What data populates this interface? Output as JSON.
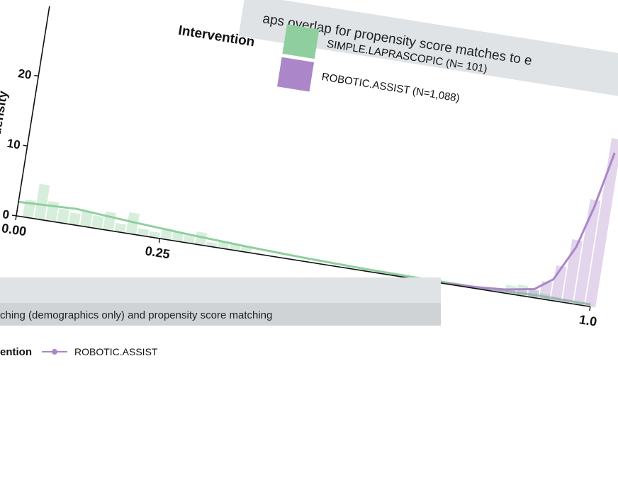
{
  "chart_data": [
    {
      "type": "histogram",
      "title": "aps overlap for propensity score matches to e",
      "xlabel": "",
      "ylabel": "density",
      "legend_title": "Intervention",
      "legend_placement": "top",
      "x_ticks": [
        "0.00",
        "0.25",
        "1.0"
      ],
      "y_ticks": [
        "0",
        "10",
        "20"
      ],
      "xlim": [
        0,
        1
      ],
      "ylim": [
        0,
        28
      ],
      "series": [
        {
          "name": "SIMPLE.LAPRASCOPIC (N=  101)",
          "color": "#8fcf9f",
          "bins_x": [
            0.02,
            0.04,
            0.06,
            0.08,
            0.1,
            0.12,
            0.14,
            0.16,
            0.18,
            0.2,
            0.22,
            0.24,
            0.26,
            0.28,
            0.3,
            0.32,
            0.34,
            0.36,
            0.38,
            0.4,
            0.86,
            0.88,
            0.9,
            0.92,
            0.94
          ],
          "bins_y": [
            2.5,
            5.0,
            2.8,
            2.0,
            1.7,
            2.3,
            1.8,
            2.6,
            1.2,
            3.0,
            1.0,
            0.8,
            1.6,
            1.2,
            1.0,
            1.8,
            0.6,
            1.0,
            0.8,
            0.9,
            1.2,
            1.5,
            1.0,
            0.8,
            0.6
          ],
          "density_x": [
            0.0,
            0.1,
            0.2,
            0.3,
            0.4,
            0.5,
            0.6,
            0.7,
            0.8,
            0.9,
            1.0
          ],
          "density_y": [
            2.0,
            2.3,
            1.7,
            1.2,
            0.8,
            0.5,
            0.3,
            0.2,
            0.2,
            0.4,
            0.3
          ]
        },
        {
          "name": "ROBOTIC.ASSIST (N=1,088)",
          "color": "#ab86c8",
          "bins_x": [
            0.76,
            0.78,
            0.8,
            0.82,
            0.84,
            0.86,
            0.88,
            0.9,
            0.92,
            0.94,
            0.96,
            0.98,
            1.0
          ],
          "bins_y": [
            0.1,
            0.2,
            0.2,
            0.3,
            0.4,
            0.6,
            0.8,
            1.2,
            2.5,
            5.0,
            9.0,
            15.0,
            24.0
          ],
          "density_x": [
            0.75,
            0.8,
            0.85,
            0.9,
            0.93,
            0.96,
            0.98,
            1.0
          ],
          "density_y": [
            0.05,
            0.2,
            0.5,
            1.2,
            3.0,
            8.0,
            14.0,
            22.0
          ]
        }
      ]
    }
  ],
  "front_panel": {
    "subtitle": "ching (demographics only) and propensity score matching",
    "legend_title": "ention",
    "legend_item": "ROBOTIC.ASSIST",
    "legend_color": "#ab86c8"
  }
}
